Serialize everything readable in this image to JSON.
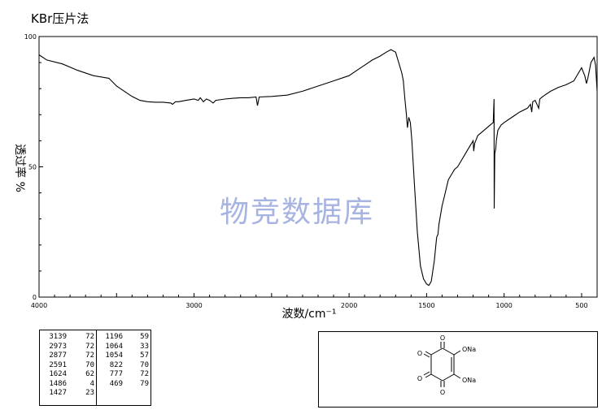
{
  "title": "KBr压片法",
  "watermark": "物竞数据库",
  "chart_data": {
    "type": "line",
    "xlabel": "波数/cm⁻¹",
    "ylabel": "透过率 %",
    "xlim": [
      4000,
      400
    ],
    "ylim": [
      0,
      100
    ],
    "x_ticks": [
      4000,
      3000,
      2000,
      1500,
      1000,
      500
    ],
    "x_tick_labels": [
      "4000",
      "3000",
      "2000",
      "1500",
      "1000",
      "500"
    ],
    "y_ticks": [
      0,
      50,
      100
    ],
    "y_tick_labels": [
      "0",
      "50",
      "100"
    ],
    "series": [
      {
        "points": [
          [
            4000,
            93
          ],
          [
            3950,
            91
          ],
          [
            3850,
            89.5
          ],
          [
            3750,
            87
          ],
          [
            3650,
            85
          ],
          [
            3550,
            84
          ],
          [
            3500,
            81
          ],
          [
            3450,
            79
          ],
          [
            3400,
            77
          ],
          [
            3350,
            75.5
          ],
          [
            3300,
            75
          ],
          [
            3250,
            74.8
          ],
          [
            3200,
            74.8
          ],
          [
            3150,
            74.5
          ],
          [
            3139,
            74
          ],
          [
            3120,
            75
          ],
          [
            3100,
            75
          ],
          [
            3050,
            75.5
          ],
          [
            3000,
            76
          ],
          [
            2973,
            75.5
          ],
          [
            2960,
            76.5
          ],
          [
            2940,
            75
          ],
          [
            2920,
            76
          ],
          [
            2900,
            75.5
          ],
          [
            2877,
            74.5
          ],
          [
            2860,
            75.5
          ],
          [
            2800,
            76
          ],
          [
            2750,
            76.3
          ],
          [
            2700,
            76.5
          ],
          [
            2650,
            76.5
          ],
          [
            2600,
            76.8
          ],
          [
            2591,
            73.5
          ],
          [
            2580,
            76.8
          ],
          [
            2500,
            77
          ],
          [
            2400,
            77.5
          ],
          [
            2300,
            79
          ],
          [
            2200,
            81
          ],
          [
            2100,
            83
          ],
          [
            2000,
            85
          ],
          [
            1950,
            87
          ],
          [
            1900,
            89
          ],
          [
            1850,
            91
          ],
          [
            1800,
            92.5
          ],
          [
            1760,
            94
          ],
          [
            1730,
            95
          ],
          [
            1700,
            94
          ],
          [
            1680,
            90
          ],
          [
            1660,
            86
          ],
          [
            1650,
            83
          ],
          [
            1640,
            76
          ],
          [
            1630,
            70
          ],
          [
            1624,
            65
          ],
          [
            1615,
            69
          ],
          [
            1605,
            67
          ],
          [
            1595,
            60
          ],
          [
            1580,
            45
          ],
          [
            1560,
            25
          ],
          [
            1540,
            12
          ],
          [
            1520,
            7
          ],
          [
            1500,
            5
          ],
          [
            1486,
            4.5
          ],
          [
            1470,
            6
          ],
          [
            1450,
            14
          ],
          [
            1440,
            20
          ],
          [
            1435,
            23
          ],
          [
            1427,
            24
          ],
          [
            1420,
            28
          ],
          [
            1400,
            35
          ],
          [
            1380,
            40
          ],
          [
            1360,
            45
          ],
          [
            1340,
            47
          ],
          [
            1320,
            49
          ],
          [
            1300,
            50
          ],
          [
            1280,
            52
          ],
          [
            1260,
            54
          ],
          [
            1240,
            56
          ],
          [
            1220,
            58
          ],
          [
            1200,
            60
          ],
          [
            1196,
            56
          ],
          [
            1190,
            59
          ],
          [
            1170,
            62
          ],
          [
            1150,
            63
          ],
          [
            1130,
            64
          ],
          [
            1110,
            65
          ],
          [
            1090,
            66
          ],
          [
            1070,
            67
          ],
          [
            1065,
            76
          ],
          [
            1064,
            34
          ],
          [
            1060,
            55
          ],
          [
            1054,
            57
          ],
          [
            1050,
            60
          ],
          [
            1040,
            64
          ],
          [
            1020,
            66
          ],
          [
            1000,
            67
          ],
          [
            950,
            69
          ],
          [
            900,
            71
          ],
          [
            850,
            72.5
          ],
          [
            830,
            74
          ],
          [
            822,
            71
          ],
          [
            815,
            75
          ],
          [
            800,
            75.5
          ],
          [
            777,
            72.5
          ],
          [
            770,
            76
          ],
          [
            750,
            77
          ],
          [
            700,
            79
          ],
          [
            650,
            80.5
          ],
          [
            600,
            81.5
          ],
          [
            550,
            83
          ],
          [
            520,
            86
          ],
          [
            500,
            88
          ],
          [
            480,
            85
          ],
          [
            469,
            82
          ],
          [
            460,
            84
          ],
          [
            440,
            90
          ],
          [
            420,
            92
          ],
          [
            410,
            89
          ],
          [
            400,
            79
          ]
        ]
      }
    ]
  },
  "peak_table": {
    "left": [
      {
        "wavenumber": "3139",
        "transmittance": "72"
      },
      {
        "wavenumber": "2973",
        "transmittance": "72"
      },
      {
        "wavenumber": "2877",
        "transmittance": "72"
      },
      {
        "wavenumber": "2591",
        "transmittance": "70"
      },
      {
        "wavenumber": "1624",
        "transmittance": "62"
      },
      {
        "wavenumber": "1486",
        "transmittance": "4"
      },
      {
        "wavenumber": "1427",
        "transmittance": "23"
      }
    ],
    "right": [
      {
        "wavenumber": "1196",
        "transmittance": "59"
      },
      {
        "wavenumber": "1064",
        "transmittance": "33"
      },
      {
        "wavenumber": "1054",
        "transmittance": "57"
      },
      {
        "wavenumber": "822",
        "transmittance": "70"
      },
      {
        "wavenumber": "777",
        "transmittance": "72"
      },
      {
        "wavenumber": "469",
        "transmittance": "79"
      }
    ]
  },
  "structure": {
    "labels": {
      "o_top": "O",
      "o_left_top": "O",
      "o_left_bottom": "O",
      "o_bottom": "O",
      "ona_top": "ONa",
      "ona_bottom": "ONa"
    }
  }
}
